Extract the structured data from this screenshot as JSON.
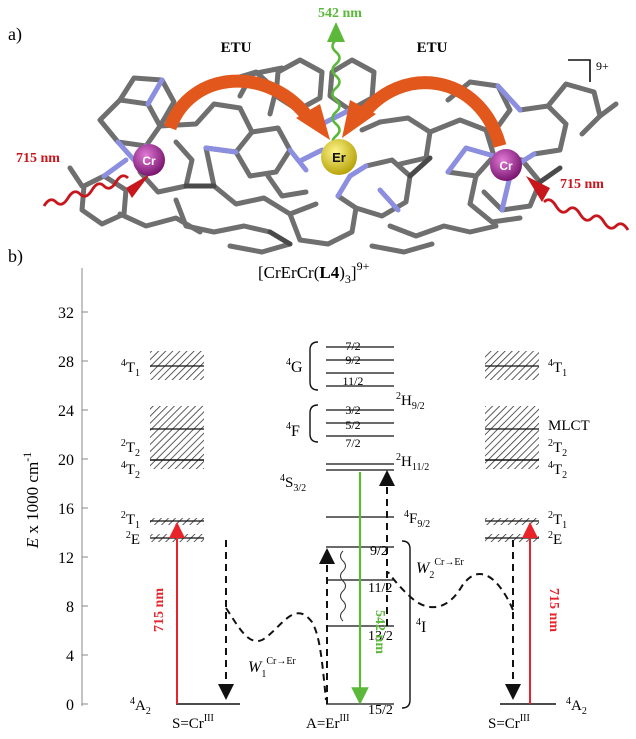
{
  "panel_a": {
    "label": "a)",
    "left_arrow_label": "ETU",
    "right_arrow_label": "ETU",
    "emission_label": "542 nm",
    "left_excitation_label": "715 nm",
    "right_excitation_label": "715 nm",
    "charge_label": "9+",
    "metal_left": "Cr",
    "metal_center": "Er",
    "metal_right": "Cr",
    "colors": {
      "arrow": "#e2571c",
      "green": "#5cb83a",
      "red": "#c8161d",
      "cr": "#9c1f8f",
      "er": "#e6d21a",
      "bond_c": "#6f6f6f",
      "bond_n": "#8c8ee0"
    }
  },
  "panel_b": {
    "label": "b)",
    "title": "[CrErCr(L4)3]9+",
    "title_parts": {
      "pre": "[CrErCr(",
      "bold": "L4",
      "post": ")",
      "sub": "3",
      "after": "]",
      "sup": "9+"
    },
    "y_axis": {
      "label_main": "E",
      "label_rest": " x 1000 cm",
      "label_sup": "-1",
      "ticks": [
        "0",
        "4",
        "8",
        "12",
        "16",
        "20",
        "24",
        "28",
        "32"
      ]
    },
    "left_column": {
      "states": [
        {
          "main": "4",
          "letter": "T",
          "sub": "1"
        },
        {
          "main": "2",
          "letter": "T",
          "sub": "2"
        },
        {
          "main": "4",
          "letter": "T",
          "sub": "2"
        },
        {
          "main": "2",
          "letter": "T",
          "sub": "1"
        },
        {
          "main": "2",
          "letter": "E",
          "sub": ""
        },
        {
          "main": "4",
          "letter": "A",
          "sub": "2"
        }
      ],
      "excitation": "715 nm",
      "bottom": {
        "pre": "S=Cr",
        "sup": "III"
      }
    },
    "center_column": {
      "g_group": {
        "main": "4",
        "letter": "G",
        "levels": [
          "7/2",
          "9/2",
          "11/2"
        ]
      },
      "h92": {
        "main": "2",
        "letter": "H",
        "sub": "9/2"
      },
      "f_group": {
        "main": "4",
        "letter": "F",
        "levels": [
          "3/2",
          "5/2",
          "7/2"
        ]
      },
      "h112": {
        "main": "2",
        "letter": "H",
        "sub": "11/2"
      },
      "s32": {
        "main": "4",
        "letter": "S",
        "sub": "3/2"
      },
      "f92": {
        "main": "4",
        "letter": "F",
        "sub": "9/2"
      },
      "i_group": {
        "main": "4",
        "letter": "I",
        "levels": [
          "9/2",
          "11/2",
          "13/2",
          "15/2"
        ]
      },
      "emission": "542 nm",
      "bottom": {
        "pre": "A=Er",
        "sup": "III"
      }
    },
    "right_column": {
      "states": [
        {
          "main": "4",
          "letter": "T",
          "sub": "1"
        },
        {
          "main": "",
          "letter": "MLCT",
          "sub": ""
        },
        {
          "main": "2",
          "letter": "T",
          "sub": "2"
        },
        {
          "main": "4",
          "letter": "T",
          "sub": "2"
        },
        {
          "main": "2",
          "letter": "T",
          "sub": "1"
        },
        {
          "main": "2",
          "letter": "E",
          "sub": ""
        },
        {
          "main": "4",
          "letter": "A",
          "sub": "2"
        }
      ],
      "excitation": "715 nm",
      "bottom": {
        "pre": "S=Cr",
        "sup": "III"
      }
    },
    "transfer_left": {
      "main": "W",
      "sub": "1",
      "sup": "Cr→Er"
    },
    "transfer_right": {
      "main": "W",
      "sub": "2",
      "sup": "Cr→Er"
    },
    "colors": {
      "red": "#e8232a",
      "green": "#5cb83a"
    }
  }
}
